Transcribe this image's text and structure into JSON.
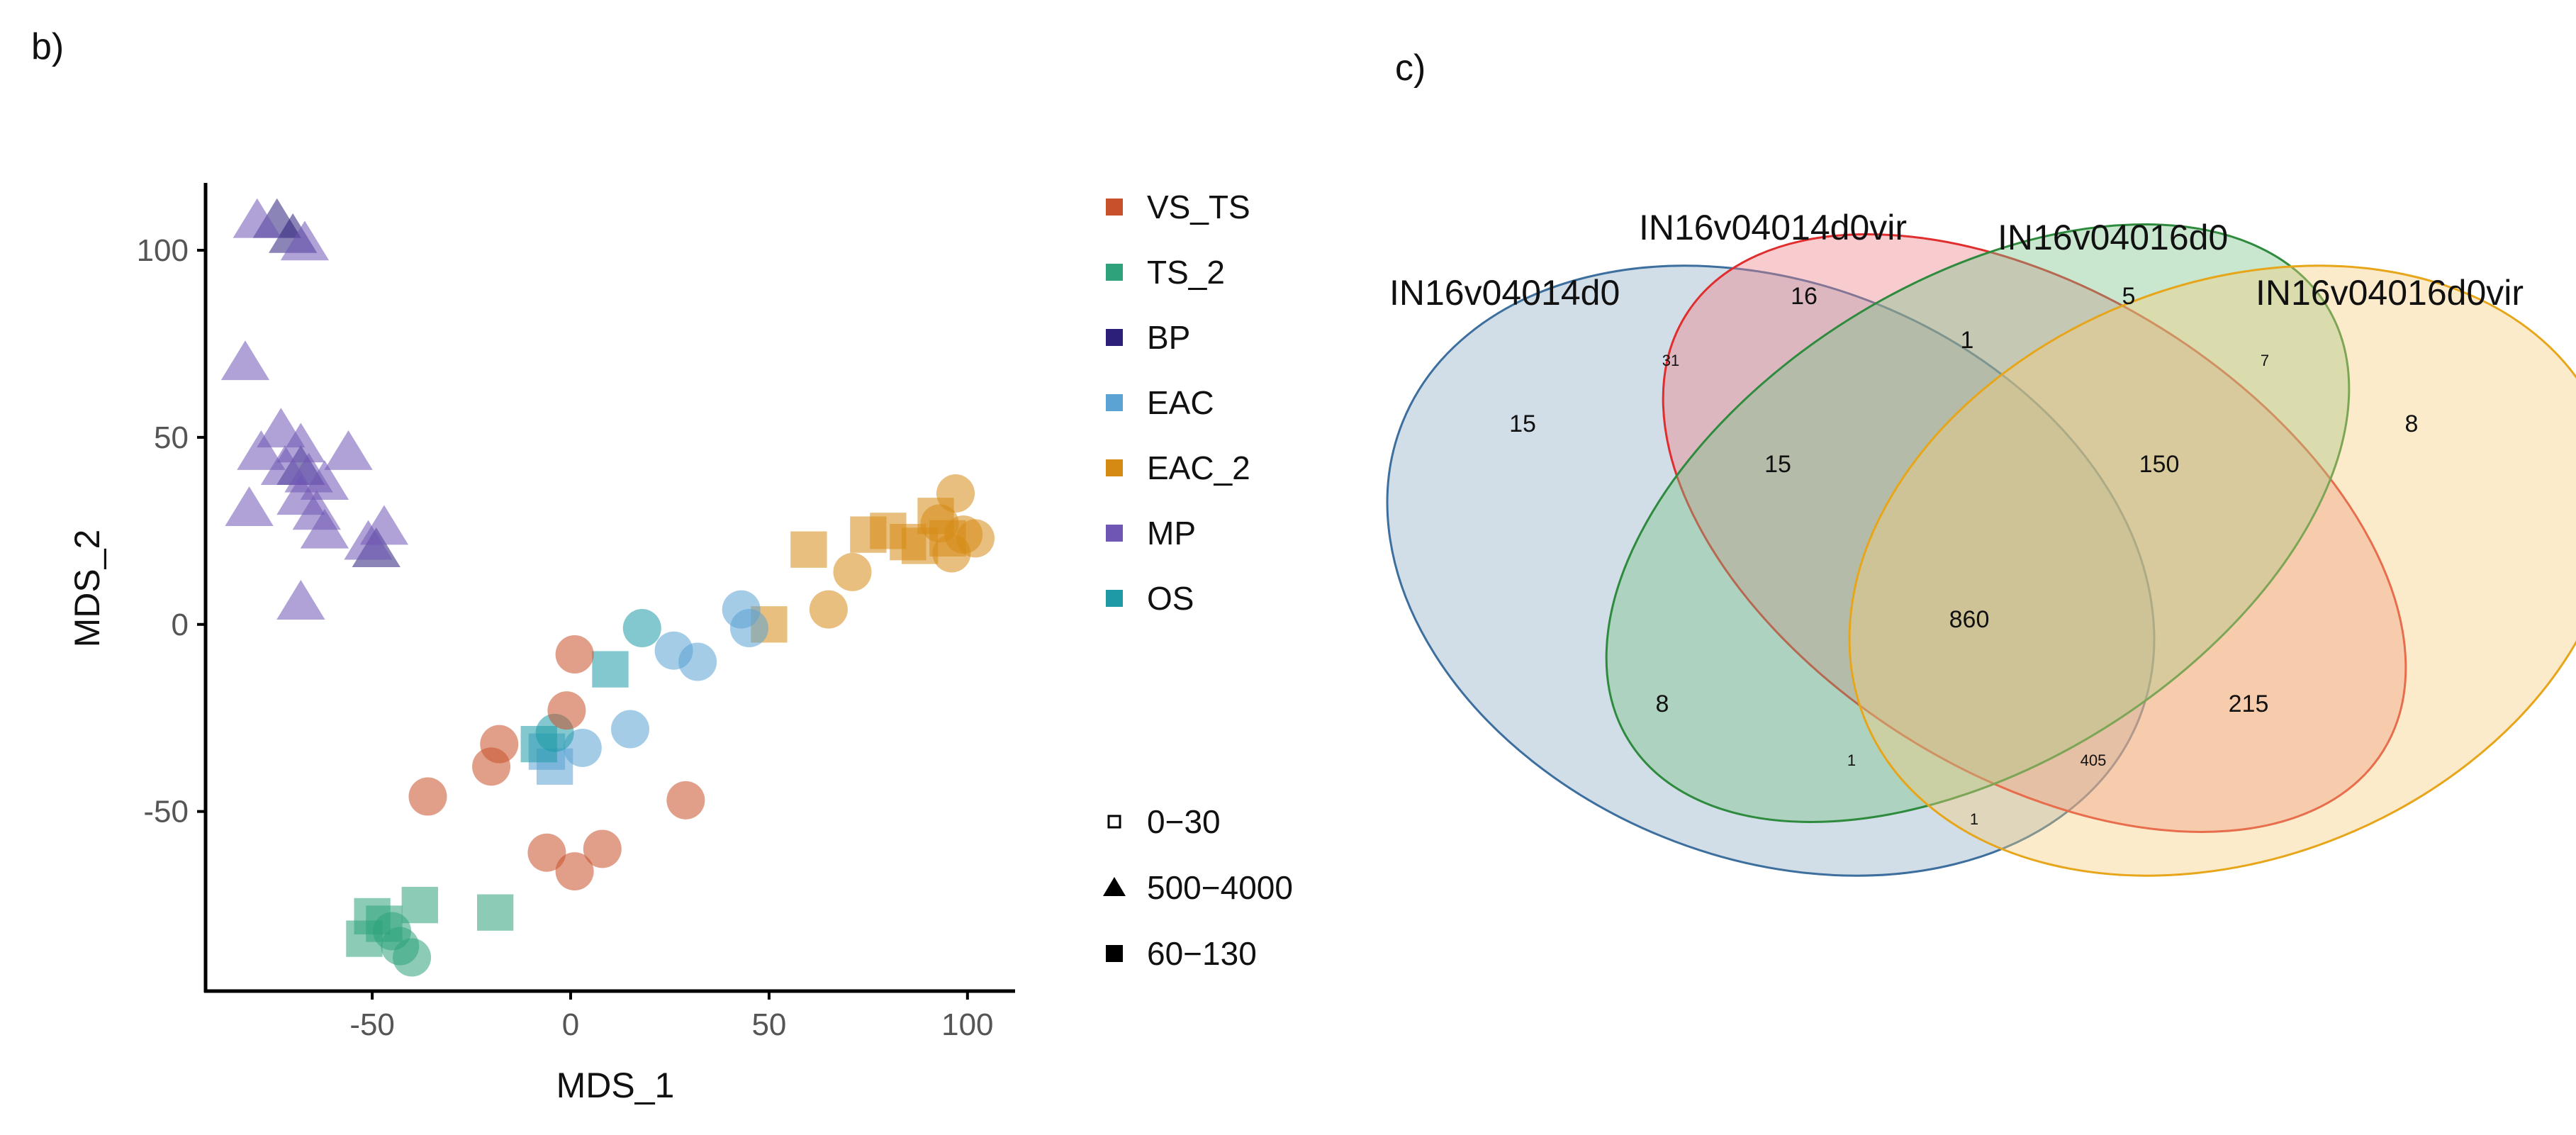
{
  "panels": {
    "b": "b)",
    "c": "c)"
  },
  "chart_data": [
    {
      "type": "scatter",
      "panel": "b)",
      "xlabel": "MDS_1",
      "ylabel": "MDS_2",
      "xlim": [
        -92,
        112
      ],
      "ylim": [
        -98,
        118
      ],
      "xticks": [
        "-50",
        "0",
        "50",
        "100"
      ],
      "yticks": [
        "100",
        "50",
        "0",
        "-50"
      ],
      "legend_groups": [
        {
          "name": "VS_TS",
          "color": "#C8502A"
        },
        {
          "name": "TS_2",
          "color": "#2EA27B"
        },
        {
          "name": "BP",
          "color": "#2B1F7A"
        },
        {
          "name": "EAC",
          "color": "#5BA3D3"
        },
        {
          "name": "EAC_2",
          "color": "#D58A14"
        },
        {
          "name": "MP",
          "color": "#6F56B5"
        },
        {
          "name": "OS",
          "color": "#1E9AA6"
        }
      ],
      "legend_shapes": [
        {
          "name": "0−30",
          "shape": "circle"
        },
        {
          "name": "500−4000",
          "shape": "triangle"
        },
        {
          "name": "60−130",
          "shape": "square"
        }
      ],
      "points": [
        {
          "group": "BP",
          "shape": "triangle",
          "x": -74,
          "y": 108
        },
        {
          "group": "BP",
          "shape": "triangle",
          "x": -70,
          "y": 104
        },
        {
          "group": "BP",
          "shape": "triangle",
          "x": -49,
          "y": 20
        },
        {
          "group": "BP",
          "shape": "triangle",
          "x": -68,
          "y": 42
        },
        {
          "group": "MP",
          "shape": "triangle",
          "x": -79,
          "y": 108
        },
        {
          "group": "MP",
          "shape": "triangle",
          "x": -67,
          "y": 102
        },
        {
          "group": "MP",
          "shape": "triangle",
          "x": -82,
          "y": 70
        },
        {
          "group": "MP",
          "shape": "triangle",
          "x": -73,
          "y": 52
        },
        {
          "group": "MP",
          "shape": "triangle",
          "x": -78,
          "y": 46
        },
        {
          "group": "MP",
          "shape": "triangle",
          "x": -68,
          "y": 48
        },
        {
          "group": "MP",
          "shape": "triangle",
          "x": -56,
          "y": 46
        },
        {
          "group": "MP",
          "shape": "triangle",
          "x": -72,
          "y": 42
        },
        {
          "group": "MP",
          "shape": "triangle",
          "x": -66,
          "y": 40
        },
        {
          "group": "MP",
          "shape": "triangle",
          "x": -62,
          "y": 38
        },
        {
          "group": "MP",
          "shape": "triangle",
          "x": -68,
          "y": 34
        },
        {
          "group": "MP",
          "shape": "triangle",
          "x": -81,
          "y": 31
        },
        {
          "group": "MP",
          "shape": "triangle",
          "x": -64,
          "y": 30
        },
        {
          "group": "MP",
          "shape": "triangle",
          "x": -62,
          "y": 25
        },
        {
          "group": "MP",
          "shape": "triangle",
          "x": -47,
          "y": 26
        },
        {
          "group": "MP",
          "shape": "triangle",
          "x": -51,
          "y": 22
        },
        {
          "group": "MP",
          "shape": "triangle",
          "x": -68,
          "y": 6
        },
        {
          "group": "EAC_2",
          "shape": "circle",
          "x": 97,
          "y": 35
        },
        {
          "group": "EAC_2",
          "shape": "circle",
          "x": 93,
          "y": 27
        },
        {
          "group": "EAC_2",
          "shape": "circle",
          "x": 99,
          "y": 24
        },
        {
          "group": "EAC_2",
          "shape": "circle",
          "x": 102,
          "y": 23
        },
        {
          "group": "EAC_2",
          "shape": "circle",
          "x": 96,
          "y": 19
        },
        {
          "group": "EAC_2",
          "shape": "circle",
          "x": 71,
          "y": 14
        },
        {
          "group": "EAC_2",
          "shape": "circle",
          "x": 65,
          "y": 4
        },
        {
          "group": "EAC_2",
          "shape": "square",
          "x": 60,
          "y": 20
        },
        {
          "group": "EAC_2",
          "shape": "square",
          "x": 75,
          "y": 24
        },
        {
          "group": "EAC_2",
          "shape": "square",
          "x": 80,
          "y": 25
        },
        {
          "group": "EAC_2",
          "shape": "square",
          "x": 85,
          "y": 22
        },
        {
          "group": "EAC_2",
          "shape": "square",
          "x": 92,
          "y": 29
        },
        {
          "group": "EAC_2",
          "shape": "square",
          "x": 95,
          "y": 23
        },
        {
          "group": "EAC_2",
          "shape": "square",
          "x": 88,
          "y": 21
        },
        {
          "group": "EAC_2",
          "shape": "square",
          "x": 50,
          "y": 0
        },
        {
          "group": "EAC",
          "shape": "circle",
          "x": 43,
          "y": 4
        },
        {
          "group": "EAC",
          "shape": "circle",
          "x": 45,
          "y": -1
        },
        {
          "group": "EAC",
          "shape": "circle",
          "x": 26,
          "y": -7
        },
        {
          "group": "EAC",
          "shape": "circle",
          "x": 32,
          "y": -10
        },
        {
          "group": "EAC",
          "shape": "circle",
          "x": 15,
          "y": -28
        },
        {
          "group": "EAC",
          "shape": "circle",
          "x": 3,
          "y": -33
        },
        {
          "group": "EAC",
          "shape": "square",
          "x": -6,
          "y": -34
        },
        {
          "group": "EAC",
          "shape": "square",
          "x": -4,
          "y": -38
        },
        {
          "group": "OS",
          "shape": "circle",
          "x": 18,
          "y": -1
        },
        {
          "group": "OS",
          "shape": "circle",
          "x": -4,
          "y": -29
        },
        {
          "group": "OS",
          "shape": "square",
          "x": 10,
          "y": -12
        },
        {
          "group": "OS",
          "shape": "square",
          "x": -8,
          "y": -32
        },
        {
          "group": "VS_TS",
          "shape": "circle",
          "x": 1,
          "y": -8
        },
        {
          "group": "VS_TS",
          "shape": "circle",
          "x": -1,
          "y": -23
        },
        {
          "group": "VS_TS",
          "shape": "circle",
          "x": -18,
          "y": -32
        },
        {
          "group": "VS_TS",
          "shape": "circle",
          "x": -20,
          "y": -38
        },
        {
          "group": "VS_TS",
          "shape": "circle",
          "x": -36,
          "y": -46
        },
        {
          "group": "VS_TS",
          "shape": "circle",
          "x": 29,
          "y": -47
        },
        {
          "group": "VS_TS",
          "shape": "circle",
          "x": -6,
          "y": -61
        },
        {
          "group": "VS_TS",
          "shape": "circle",
          "x": 8,
          "y": -60
        },
        {
          "group": "VS_TS",
          "shape": "circle",
          "x": 1,
          "y": -66
        },
        {
          "group": "TS_2",
          "shape": "circle",
          "x": -45,
          "y": -82
        },
        {
          "group": "TS_2",
          "shape": "circle",
          "x": -43,
          "y": -86
        },
        {
          "group": "TS_2",
          "shape": "circle",
          "x": -40,
          "y": -89
        },
        {
          "group": "TS_2",
          "shape": "square",
          "x": -50,
          "y": -78
        },
        {
          "group": "TS_2",
          "shape": "square",
          "x": -47,
          "y": -80
        },
        {
          "group": "TS_2",
          "shape": "square",
          "x": -52,
          "y": -84
        },
        {
          "group": "TS_2",
          "shape": "square",
          "x": -38,
          "y": -75
        },
        {
          "group": "TS_2",
          "shape": "square",
          "x": -19,
          "y": -77
        }
      ]
    },
    {
      "type": "venn",
      "panel": "c)",
      "sets": [
        {
          "name": "IN16v04014d0",
          "color": "#7A9EBA"
        },
        {
          "name": "IN16v04014d0vir",
          "color": "#EE7F86"
        },
        {
          "name": "IN16v04016d0",
          "color": "#78C287"
        },
        {
          "name": "IN16v04016d0vir",
          "color": "#F5CE7A"
        }
      ],
      "regions": [
        {
          "sets": [
            "IN16v04014d0"
          ],
          "value": "15"
        },
        {
          "sets": [
            "IN16v04014d0vir"
          ],
          "value": "16"
        },
        {
          "sets": [
            "IN16v04016d0"
          ],
          "value": "5"
        },
        {
          "sets": [
            "IN16v04016d0vir"
          ],
          "value": "8"
        },
        {
          "sets": [
            "IN16v04014d0",
            "IN16v04014d0vir"
          ],
          "value": "31"
        },
        {
          "sets": [
            "IN16v04014d0vir",
            "IN16v04016d0"
          ],
          "value": "1"
        },
        {
          "sets": [
            "IN16v04016d0",
            "IN16v04016d0vir"
          ],
          "value": "7"
        },
        {
          "sets": [
            "IN16v04014d0",
            "IN16v04014d0vir",
            "IN16v04016d0"
          ],
          "value": "15"
        },
        {
          "sets": [
            "IN16v04014d0vir",
            "IN16v04016d0",
            "IN16v04016d0vir"
          ],
          "value": "150"
        },
        {
          "sets": [
            "IN16v04014d0",
            "IN16v04014d0vir",
            "IN16v04016d0",
            "IN16v04016d0vir"
          ],
          "value": "860"
        },
        {
          "sets": [
            "IN16v04014d0",
            "IN16v04016d0"
          ],
          "value": "8"
        },
        {
          "sets": [
            "IN16v04014d0vir",
            "IN16v04016d0vir"
          ],
          "value": "215"
        },
        {
          "sets": [
            "IN16v04014d0",
            "IN16v04016d0",
            "IN16v04016d0vir"
          ],
          "value": "1"
        },
        {
          "sets": [
            "IN16v04014d0",
            "IN16v04014d0vir",
            "IN16v04016d0vir"
          ],
          "value": "405"
        },
        {
          "sets": [
            "IN16v04014d0",
            "IN16v04016d0vir"
          ],
          "value": "1"
        }
      ]
    }
  ]
}
